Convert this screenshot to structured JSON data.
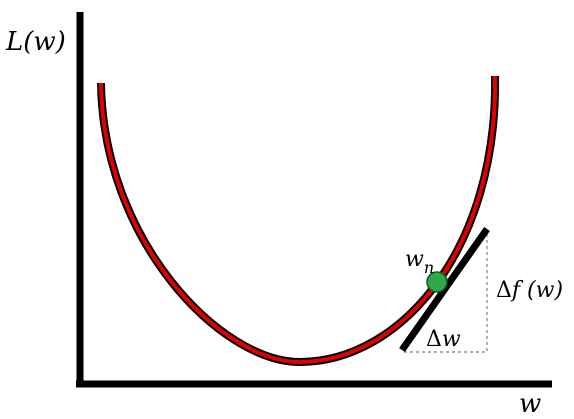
{
  "labels": {
    "y_axis": "L(w)",
    "x_axis": "w",
    "point_main": "w",
    "point_sub": "n",
    "delta_f_symbol": "Δ",
    "delta_f_rest": "f (w)",
    "delta_w_symbol": "Δ",
    "delta_w_rest": "w"
  },
  "colors": {
    "axis": "#000000",
    "curve_outline": "#000000",
    "curve_fill": "#e00000",
    "tangent": "#000000",
    "point": "#2ea84a",
    "guide": "#808080"
  }
}
